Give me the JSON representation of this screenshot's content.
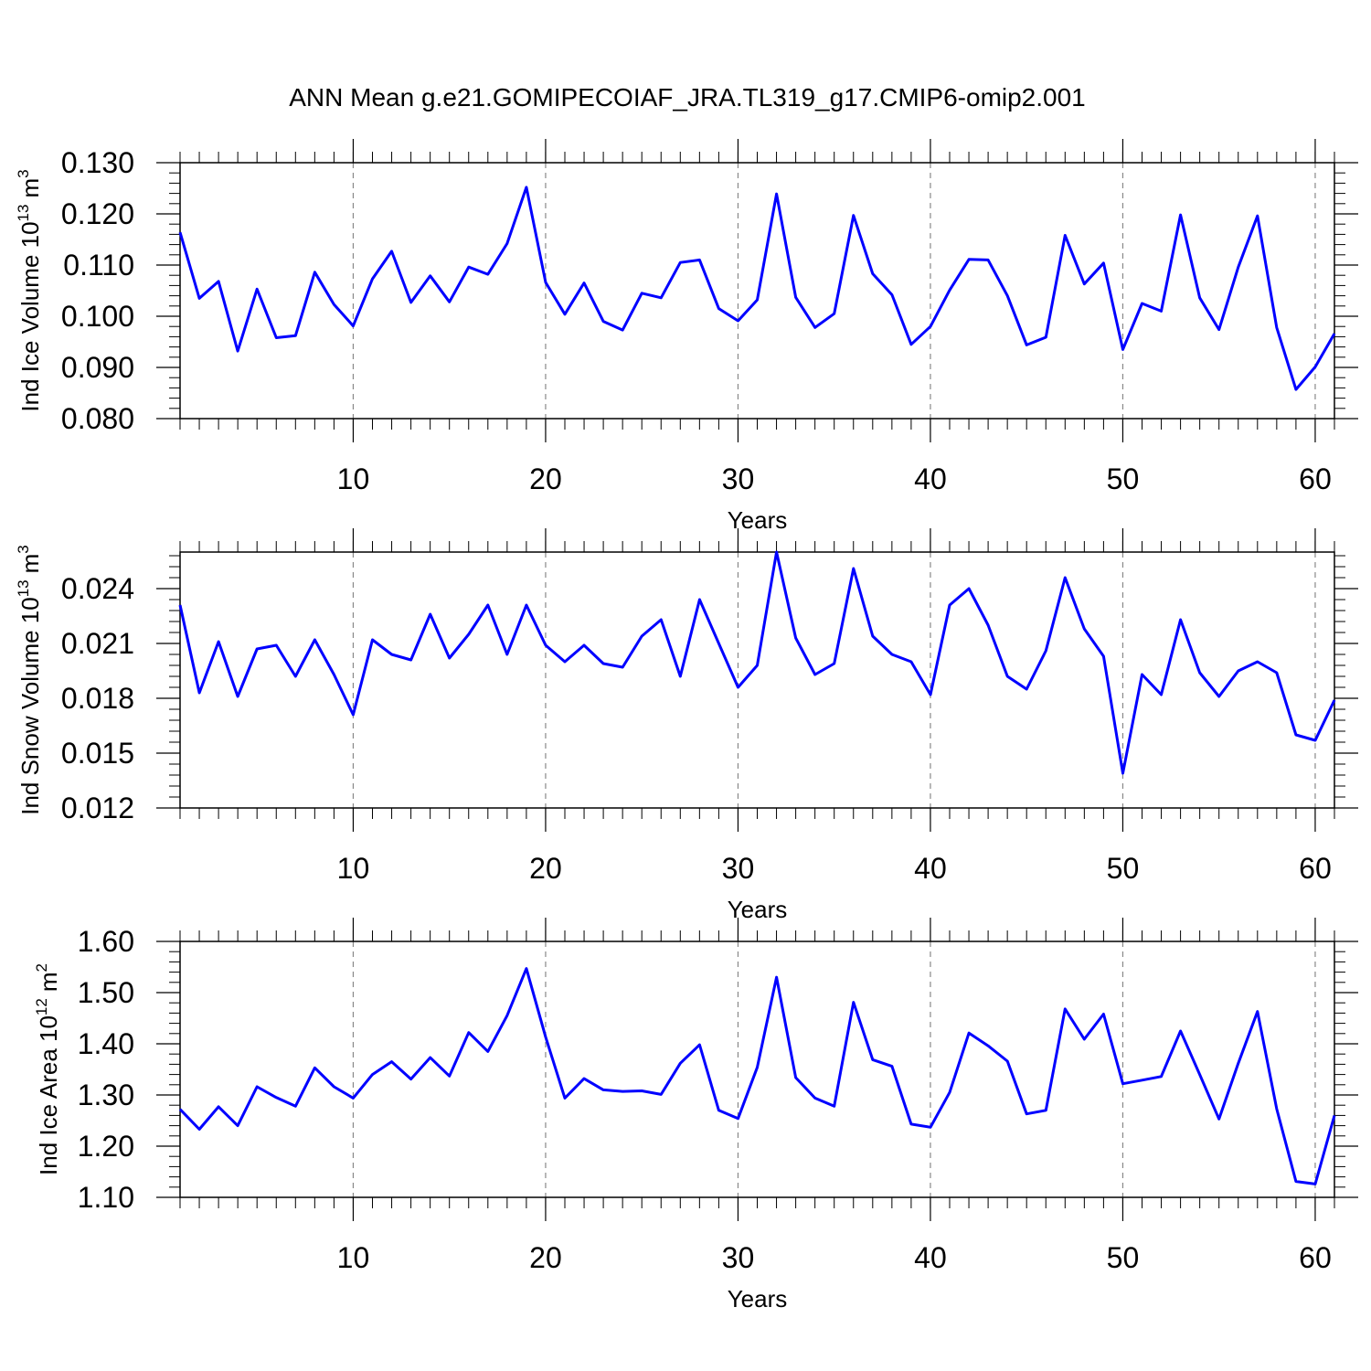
{
  "title": "ANN Mean g.e21.GOMIPECOIAF_JRA.TL319_g17.CMIP6-omip2.001",
  "colors": {
    "series": "#0000ff",
    "grid": "#888888",
    "axis": "#000000"
  },
  "chart_data": [
    {
      "type": "line",
      "title": "",
      "xlabel": "Years",
      "ylabel": "Ind Ice Volume 10",
      "ylabel_exponent": "13",
      "ylabel_unit": "m",
      "ylabel_unit_exponent": "3",
      "xlim": [
        1,
        61
      ],
      "ylim": [
        0.08,
        0.13
      ],
      "x_ticks": [
        10,
        20,
        30,
        40,
        50,
        60
      ],
      "x_tick_labels": [
        "10",
        "20",
        "30",
        "40",
        "50",
        "60"
      ],
      "y_ticks": [
        0.08,
        0.09,
        0.1,
        0.11,
        0.12,
        0.13
      ],
      "y_tick_labels": [
        "0.080",
        "0.090",
        "0.100",
        "0.110",
        "0.120",
        "0.130"
      ],
      "grid": "x-dashed",
      "x": [
        1,
        2,
        3,
        4,
        5,
        6,
        7,
        8,
        9,
        10,
        11,
        12,
        13,
        14,
        15,
        16,
        17,
        18,
        19,
        20,
        21,
        22,
        23,
        24,
        25,
        26,
        27,
        28,
        29,
        30,
        31,
        32,
        33,
        34,
        35,
        36,
        37,
        38,
        39,
        40,
        41,
        42,
        43,
        44,
        45,
        46,
        47,
        48,
        49,
        50,
        51,
        52,
        53,
        54,
        55,
        56,
        57,
        58,
        59,
        60,
        61
      ],
      "values": [
        0.1164,
        0.1035,
        0.1068,
        0.0932,
        0.1053,
        0.0958,
        0.0962,
        0.1086,
        0.1023,
        0.0981,
        0.1073,
        0.1127,
        0.1027,
        0.1079,
        0.1028,
        0.1096,
        0.1082,
        0.1142,
        0.1252,
        0.1066,
        0.1004,
        0.1065,
        0.099,
        0.0973,
        0.1045,
        0.1036,
        0.1105,
        0.111,
        0.1015,
        0.0991,
        0.1032,
        0.1239,
        0.1037,
        0.0978,
        0.1005,
        0.1197,
        0.1083,
        0.1042,
        0.0945,
        0.098,
        0.1051,
        0.1111,
        0.111,
        0.104,
        0.0944,
        0.0959,
        0.1158,
        0.1063,
        0.1104,
        0.0935,
        0.1025,
        0.101,
        0.1198,
        0.1036,
        0.0974,
        0.1096,
        0.1196,
        0.0978,
        0.0857,
        0.0901,
        0.0966
      ]
    },
    {
      "type": "line",
      "title": "",
      "xlabel": "Years",
      "ylabel": "Ind Snow Volume 10",
      "ylabel_exponent": "13",
      "ylabel_unit": "m",
      "ylabel_unit_exponent": "3",
      "xlim": [
        1,
        61
      ],
      "ylim": [
        0.012,
        0.026
      ],
      "x_ticks": [
        10,
        20,
        30,
        40,
        50,
        60
      ],
      "x_tick_labels": [
        "10",
        "20",
        "30",
        "40",
        "50",
        "60"
      ],
      "y_ticks": [
        0.012,
        0.015,
        0.018,
        0.021,
        0.024
      ],
      "y_tick_labels": [
        "0.012",
        "0.015",
        "0.018",
        "0.021",
        "0.024"
      ],
      "grid": "x-dashed",
      "x": [
        1,
        2,
        3,
        4,
        5,
        6,
        7,
        8,
        9,
        10,
        11,
        12,
        13,
        14,
        15,
        16,
        17,
        18,
        19,
        20,
        21,
        22,
        23,
        24,
        25,
        26,
        27,
        28,
        29,
        30,
        31,
        32,
        33,
        34,
        35,
        36,
        37,
        38,
        39,
        40,
        41,
        42,
        43,
        44,
        45,
        46,
        47,
        48,
        49,
        50,
        51,
        52,
        53,
        54,
        55,
        56,
        57,
        58,
        59,
        60,
        61
      ],
      "values": [
        0.0231,
        0.0183,
        0.0211,
        0.0181,
        0.0207,
        0.0209,
        0.0192,
        0.0212,
        0.0193,
        0.0171,
        0.0212,
        0.0204,
        0.0201,
        0.0226,
        0.0202,
        0.0215,
        0.0231,
        0.0204,
        0.0231,
        0.0209,
        0.02,
        0.0209,
        0.0199,
        0.0197,
        0.0214,
        0.0223,
        0.0192,
        0.0234,
        0.021,
        0.0186,
        0.0198,
        0.026,
        0.0213,
        0.0193,
        0.0199,
        0.0251,
        0.0214,
        0.0204,
        0.02,
        0.0182,
        0.0231,
        0.024,
        0.022,
        0.0192,
        0.0185,
        0.0206,
        0.0246,
        0.0218,
        0.0203,
        0.0139,
        0.0193,
        0.0182,
        0.0223,
        0.0194,
        0.0181,
        0.0195,
        0.02,
        0.0194,
        0.016,
        0.0157,
        0.0179
      ]
    },
    {
      "type": "line",
      "title": "",
      "xlabel": "Years",
      "ylabel": "Ind Ice Area 10",
      "ylabel_exponent": "12",
      "ylabel_unit": "m",
      "ylabel_unit_exponent": "2",
      "xlim": [
        1,
        61
      ],
      "ylim": [
        1.1,
        1.6
      ],
      "x_ticks": [
        10,
        20,
        30,
        40,
        50,
        60
      ],
      "x_tick_labels": [
        "10",
        "20",
        "30",
        "40",
        "50",
        "60"
      ],
      "y_ticks": [
        1.1,
        1.2,
        1.3,
        1.4,
        1.5,
        1.6
      ],
      "y_tick_labels": [
        "1.10",
        "1.20",
        "1.30",
        "1.40",
        "1.50",
        "1.60"
      ],
      "grid": "x-dashed",
      "x": [
        1,
        2,
        3,
        4,
        5,
        6,
        7,
        8,
        9,
        10,
        11,
        12,
        13,
        14,
        15,
        16,
        17,
        18,
        19,
        20,
        21,
        22,
        23,
        24,
        25,
        26,
        27,
        28,
        29,
        30,
        31,
        32,
        33,
        34,
        35,
        36,
        37,
        38,
        39,
        40,
        41,
        42,
        43,
        44,
        45,
        46,
        47,
        48,
        49,
        50,
        51,
        52,
        53,
        54,
        55,
        56,
        57,
        58,
        59,
        60,
        61
      ],
      "values": [
        1.272,
        1.233,
        1.277,
        1.24,
        1.316,
        1.295,
        1.278,
        1.353,
        1.316,
        1.294,
        1.34,
        1.365,
        1.331,
        1.373,
        1.337,
        1.422,
        1.385,
        1.455,
        1.547,
        1.413,
        1.294,
        1.332,
        1.31,
        1.307,
        1.308,
        1.301,
        1.362,
        1.398,
        1.27,
        1.254,
        1.354,
        1.53,
        1.334,
        1.294,
        1.278,
        1.481,
        1.369,
        1.356,
        1.243,
        1.237,
        1.305,
        1.421,
        1.396,
        1.366,
        1.263,
        1.27,
        1.468,
        1.409,
        1.458,
        1.322,
        1.329,
        1.336,
        1.425,
        1.34,
        1.253,
        1.362,
        1.463,
        1.273,
        1.131,
        1.126,
        1.26
      ]
    }
  ]
}
